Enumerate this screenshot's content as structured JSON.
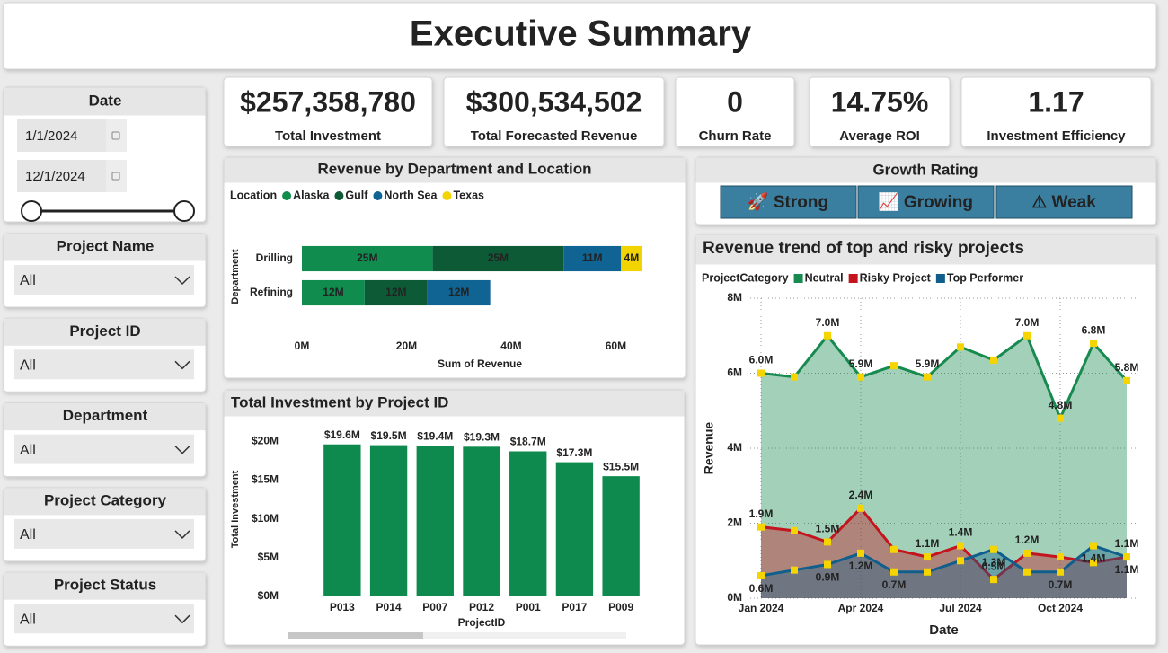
{
  "header": {
    "title": "Executive Summary"
  },
  "filters": {
    "date": {
      "label": "Date",
      "start": "1/1/2024",
      "end": "12/1/2024"
    },
    "dropdowns": [
      {
        "label": "Project Name",
        "value": "All"
      },
      {
        "label": "Project ID",
        "value": "All"
      },
      {
        "label": "Department",
        "value": "All"
      },
      {
        "label": "Project Category",
        "value": "All"
      },
      {
        "label": "Project Status",
        "value": "All"
      }
    ]
  },
  "kpis": [
    {
      "value": "$257,358,780",
      "label": "Total Investment"
    },
    {
      "value": "$300,534,502",
      "label": "Total Forecasted Revenue"
    },
    {
      "value": "0",
      "label": "Churn Rate"
    },
    {
      "value": "14.75%",
      "label": "Average ROI"
    },
    {
      "value": "1.17",
      "label": "Investment Efficiency"
    }
  ],
  "growth_rating": {
    "title": "Growth Rating",
    "buttons": [
      "🚀 Strong",
      "📈 Growing",
      "⚠ Weak"
    ]
  },
  "chart_data": [
    {
      "type": "bar",
      "orientation": "horizontal",
      "stacked": true,
      "title": "Revenue by Department and Location",
      "legend_title": "Location",
      "categories": [
        "Drilling",
        "Refining"
      ],
      "series": [
        {
          "name": "Alaska",
          "color": "#118c4f",
          "values": [
            25,
            12
          ],
          "value_labels": [
            "25M",
            "12M"
          ]
        },
        {
          "name": "Gulf",
          "color": "#0c5b36",
          "values": [
            25,
            12
          ],
          "value_labels": [
            "25M",
            "12M"
          ]
        },
        {
          "name": "North Sea",
          "color": "#0f6494",
          "values": [
            11,
            12
          ],
          "value_labels": [
            "11M",
            "12M"
          ]
        },
        {
          "name": "Texas",
          "color": "#f2d500",
          "values": [
            4,
            null
          ],
          "value_labels": [
            "4M",
            null
          ]
        }
      ],
      "xlabel": "Sum of Revenue",
      "ylabel": "Department",
      "xlim": [
        0,
        68
      ],
      "xticks": [
        {
          "value": 0,
          "label": "0M"
        },
        {
          "value": 20,
          "label": "20M"
        },
        {
          "value": 40,
          "label": "40M"
        },
        {
          "value": 60,
          "label": "60M"
        }
      ]
    },
    {
      "type": "bar",
      "orientation": "vertical",
      "title": "Total Investment by Project ID",
      "categories": [
        "P013",
        "P014",
        "P007",
        "P012",
        "P001",
        "P017",
        "P009"
      ],
      "values": [
        19.6,
        19.5,
        19.4,
        19.3,
        18.7,
        17.3,
        15.5
      ],
      "value_labels": [
        "$19.6M",
        "$19.5M",
        "$19.4M",
        "$19.3M",
        "$18.7M",
        "$17.3M",
        "$15.5M"
      ],
      "color": "#0f8a4f",
      "xlabel": "ProjectID",
      "ylabel": "Total Investment",
      "ylim": [
        0,
        22
      ],
      "yticks": [
        {
          "value": 0,
          "label": "$0M"
        },
        {
          "value": 5,
          "label": "$5M"
        },
        {
          "value": 10,
          "label": "$10M"
        },
        {
          "value": 15,
          "label": "$15M"
        },
        {
          "value": 20,
          "label": "$20M"
        }
      ]
    },
    {
      "type": "area",
      "title": "Revenue trend of top and risky projects",
      "legend_title": "ProjectCategory",
      "categories": [
        "Jan 2024",
        null,
        null,
        "Apr 2024",
        null,
        null,
        "Jul 2024",
        null,
        null,
        "Oct 2024",
        null,
        null
      ],
      "xlabel": "Date",
      "ylabel": "Revenue",
      "grid": true,
      "marker_color": "#f5d400",
      "ylim": [
        0,
        8
      ],
      "yticks": [
        {
          "value": 0,
          "label": "0M"
        },
        {
          "value": 2,
          "label": "2M"
        },
        {
          "value": 4,
          "label": "4M"
        },
        {
          "value": 6,
          "label": "6M"
        },
        {
          "value": 8,
          "label": "8M"
        }
      ],
      "series": [
        {
          "name": "Neutral",
          "color": "#178a4f",
          "values": [
            6.0,
            5.9,
            7.0,
            5.9,
            6.2,
            5.9,
            6.7,
            6.35,
            7.0,
            4.8,
            6.8,
            5.8
          ],
          "value_labels": [
            "6.0M",
            null,
            "7.0M",
            "5.9M",
            null,
            "5.9M",
            null,
            null,
            "7.0M",
            "4.8M",
            "6.8M",
            "5.8M"
          ]
        },
        {
          "name": "Risky Project",
          "color": "#c4141d",
          "values": [
            1.9,
            1.8,
            1.5,
            2.4,
            1.3,
            1.1,
            1.4,
            0.5,
            1.2,
            1.1,
            0.95,
            1.1
          ],
          "value_labels": [
            "1.9M",
            null,
            "1.5M",
            "2.4M",
            null,
            "1.1M",
            "1.4M",
            "0.5M",
            "1.2M",
            null,
            null,
            "1.1M"
          ]
        },
        {
          "name": "Top Performer",
          "color": "#0f5e8c",
          "values": [
            0.6,
            0.75,
            0.9,
            1.2,
            0.7,
            0.7,
            1.0,
            1.3,
            0.7,
            0.7,
            1.4,
            1.1
          ],
          "value_labels": [
            "0.6M",
            null,
            "0.9M",
            "1.2M",
            "0.7M",
            null,
            null,
            "1.3M",
            null,
            "0.7M",
            "1.4M",
            "1.1M"
          ]
        }
      ]
    }
  ]
}
